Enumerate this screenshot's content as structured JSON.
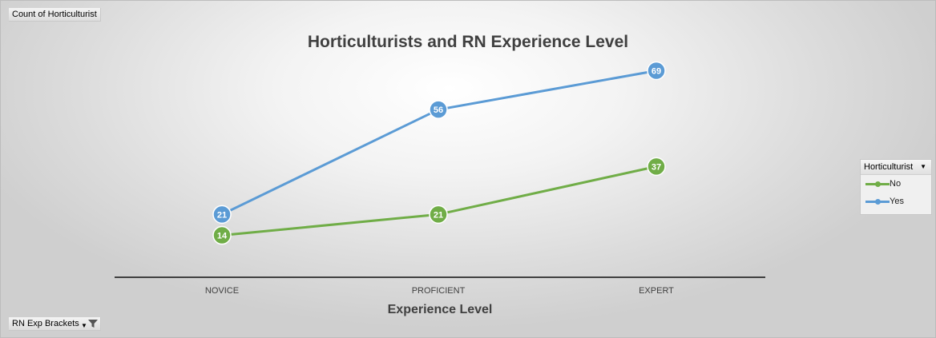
{
  "field_buttons": {
    "value_field": "Count of Horticulturist",
    "axis_field": "RN Exp Brackets"
  },
  "legend": {
    "title": "Horticulturist"
  },
  "colors": {
    "No": "#70ad47",
    "Yes": "#5b9bd5",
    "axis": "#404040",
    "text": "#404040"
  },
  "chart_data": {
    "type": "line",
    "title": "Horticulturists and RN Experience Level",
    "xlabel": "Experience Level",
    "ylabel": "",
    "categories": [
      "NOVICE",
      "PROFICIENT",
      "EXPERT"
    ],
    "series": [
      {
        "name": "No",
        "values": [
          14,
          21,
          37
        ]
      },
      {
        "name": "Yes",
        "values": [
          21,
          56,
          69
        ]
      }
    ],
    "ylim": [
      0,
      75
    ],
    "grid": false,
    "data_labels": true,
    "legend_position": "right"
  }
}
